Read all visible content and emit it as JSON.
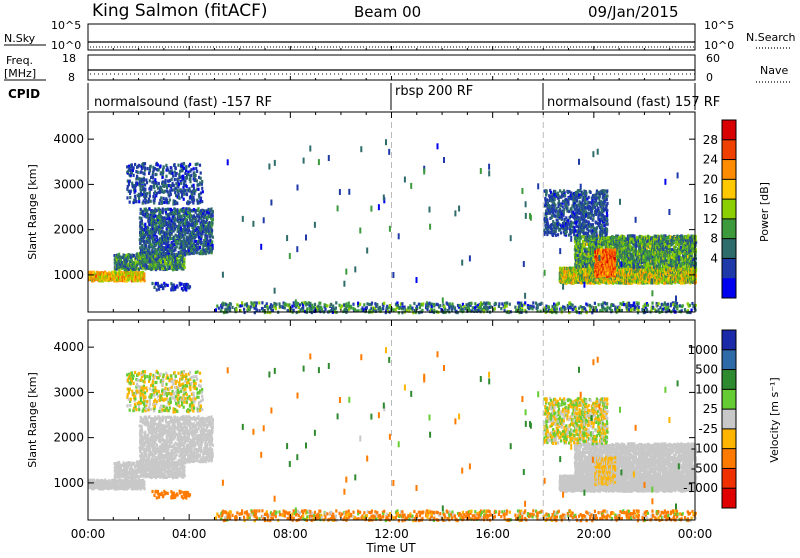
{
  "header": {
    "station": "King Salmon (fitACF)",
    "beam": "Beam 00",
    "date": "09/Jan/2015"
  },
  "noise_panel": {
    "left_label": "N.Sky",
    "right_label": "N.Search",
    "left_ticks": [
      "10^5",
      "10^0"
    ],
    "right_ticks": [
      "10^5",
      "10^0"
    ]
  },
  "freq_panel": {
    "left_label_1": "Freq.",
    "left_label_2": "[MHz]",
    "right_label": "Nave",
    "left_ticks": [
      "18",
      "8"
    ],
    "right_ticks": [
      "60",
      "0"
    ]
  },
  "cpid": {
    "label": "CPID",
    "segments": [
      {
        "name": "normalsound (fast) -157 RF",
        "start_hour": 0,
        "end_hour": 12
      },
      {
        "name": "rbsp 200 RF",
        "start_hour": 12,
        "end_hour": 18
      },
      {
        "name": "normalsound (fast) 157 RF",
        "start_hour": 18,
        "end_hour": 24
      }
    ]
  },
  "power_scale": {
    "label": "Power [dB]",
    "ticks": [
      "28",
      "24",
      "20",
      "16",
      "12",
      "8",
      "4"
    ],
    "colors": [
      "#d80000",
      "#f04000",
      "#ff8c00",
      "#ffc800",
      "#8ccf00",
      "#3c9a3c",
      "#2e6b6b",
      "#1f3aa8",
      "#0000ee"
    ]
  },
  "velocity_scale": {
    "label": "Velocity [m s⁻¹]",
    "ticks": [
      "1000",
      "500",
      "100",
      "25",
      "-25",
      "-100",
      "-500",
      "-1000"
    ],
    "colors": [
      "#1a2aa8",
      "#2f6aa8",
      "#2e8a2e",
      "#66cc33",
      "#c8c8c8",
      "#ffb400",
      "#ff7a00",
      "#f03000",
      "#e00000"
    ]
  },
  "chart_data": {
    "type": "heatmap",
    "xlabel": "Time UT",
    "ylabel": "Slant Range [km]",
    "xlim": [
      0,
      24
    ],
    "ylim": [
      180,
      4600
    ],
    "xticks": [
      "00:00",
      "04:00",
      "08:00",
      "12:00",
      "16:00",
      "20:00",
      "00:00"
    ],
    "yticks": [
      1000,
      2000,
      3000,
      4000
    ],
    "panels": [
      {
        "name": "power",
        "colorbar": "Power [dB]"
      },
      {
        "name": "velocity",
        "colorbar": "Velocity [m s⁻¹]"
      }
    ],
    "scatter_regions": [
      {
        "t0": 0.0,
        "t1": 2.2,
        "r0": 900,
        "r1": 1100,
        "density": 0.85,
        "pw": [
          14,
          26
        ],
        "vel": [
          -25,
          25
        ]
      },
      {
        "t0": 1.0,
        "t1": 3.8,
        "r0": 1150,
        "r1": 1500,
        "density": 0.5,
        "pw": [
          4,
          16
        ],
        "vel": [
          -25,
          25
        ]
      },
      {
        "t0": 2.0,
        "t1": 4.9,
        "r0": 1500,
        "r1": 2500,
        "density": 0.35,
        "pw": [
          3,
          12
        ],
        "vel": [
          -25,
          25
        ]
      },
      {
        "t0": 1.5,
        "t1": 4.5,
        "r0": 2600,
        "r1": 3500,
        "density": 0.18,
        "pw": [
          3,
          10
        ],
        "vel": [
          -100,
          100
        ]
      },
      {
        "t0": 2.5,
        "t1": 4.0,
        "r0": 700,
        "r1": 850,
        "density": 0.35,
        "pw": [
          3,
          8
        ],
        "vel": [
          -500,
          -100
        ]
      },
      {
        "t0": 18.6,
        "t1": 24.0,
        "r0": 850,
        "r1": 1200,
        "density": 0.8,
        "pw": [
          10,
          24
        ],
        "vel": [
          -25,
          25
        ]
      },
      {
        "t0": 19.2,
        "t1": 24.0,
        "r0": 1200,
        "r1": 1900,
        "density": 0.55,
        "pw": [
          6,
          18
        ],
        "vel": [
          -25,
          25
        ]
      },
      {
        "t0": 18.0,
        "t1": 20.5,
        "r0": 1900,
        "r1": 2900,
        "density": 0.3,
        "pw": [
          3,
          10
        ],
        "vel": [
          -100,
          100
        ]
      },
      {
        "t0": 20.0,
        "t1": 20.8,
        "r0": 1000,
        "r1": 1600,
        "density": 0.9,
        "pw": [
          20,
          30
        ],
        "vel": [
          -100,
          25
        ]
      },
      {
        "t0": 5.0,
        "t1": 24.0,
        "r0": 200,
        "r1": 420,
        "density": 0.2,
        "pw": [
          3,
          16
        ],
        "vel": [
          -500,
          100
        ]
      }
    ]
  }
}
